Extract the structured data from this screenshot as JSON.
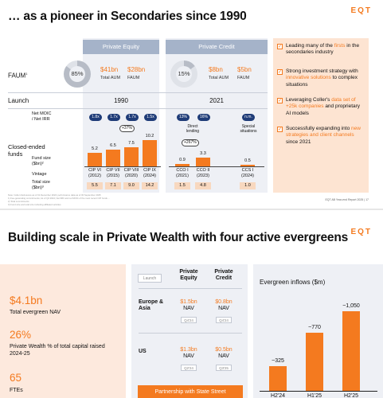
{
  "slide1": {
    "title": "… as a pioneer in Secondaries since 1990",
    "logo": "EQT",
    "headers": {
      "pe": "Private Equity",
      "pc": "Private Credit"
    },
    "rows": {
      "faum": "FAUM",
      "faum_sup": "1",
      "launch": "Launch",
      "moic": "Net MOIC\n/ Net IRR",
      "funds": "Closed-ended\nfunds",
      "fund_size": "Fund size\n($bn)²",
      "vintage": "Vintage",
      "total_size": "Total size\n($bn)³"
    },
    "pe": {
      "pct": "85%",
      "aum_val": "$41bn",
      "aum_lbl": "Total AUM",
      "faum_val": "$28bn",
      "faum_lbl": "FAUM",
      "launch": "1990"
    },
    "pc": {
      "pct": "15%",
      "aum_val": "$8bn",
      "aum_lbl": "Total AUM",
      "faum_val": "$5bn",
      "faum_lbl": "FAUM",
      "launch": "2021"
    },
    "chart_data": {
      "type": "bar",
      "categories": [
        "CIP VI\n(2012)",
        "CIP VII\n(2015)",
        "CIP VIII\n(2020)",
        "CIP IX\n(2024)",
        "CCO I\n(2021)",
        "CCO II\n(2023)",
        "CCS I\n(2024)"
      ],
      "values": [
        5.2,
        6.5,
        7.5,
        10.2,
        0.9,
        3.3,
        0.5
      ],
      "moic": [
        "1.8x",
        "1.7x",
        "1.7x",
        "1.5x",
        "13%",
        "16%",
        "n.m."
      ],
      "total_size": [
        "5.5",
        "7.1",
        "9.0",
        "14.2",
        "1.5",
        "4.8",
        "1.0"
      ],
      "growth_badges": [
        "+37%",
        "+267%"
      ],
      "sub_labels": [
        "Direct\nlending",
        "Special\nsituations"
      ]
    },
    "bullets": [
      {
        "parts": [
          "Leading many of the ",
          "firsts",
          " in the secondaries industry"
        ]
      },
      {
        "parts": [
          "Strong investment strategy with ",
          "innovative solutions",
          " to complex situations"
        ]
      },
      {
        "parts": [
          "Leveraging Coller's ",
          "data set of +25k companies",
          " and proprietary AI models"
        ]
      },
      {
        "parts": [
          "Successfully expanding into ",
          "new strategies and client channels",
          " since 2021"
        ]
      }
    ],
    "footnote1": "Note: Coller disclosures as of 31 December 2024; performance data as of 30 September 2025",
    "footnote2": "1)   Fee-generating commitments; As of Q4 2024; Net IRR and net MOIC of the most recent CIP funds …",
    "footnote3": "2)   Total commitments",
    "footnote4": "3)   Fund size and total size including affiliated vehicles",
    "page_ref": "EQT AB Year-end Report 2025   |   17"
  },
  "slide2": {
    "title": "Building scale in Private Wealth with four active evergreens",
    "logo": "EQT",
    "stats": [
      {
        "value": "$4.1bn",
        "label": "Total evergreen NAV"
      },
      {
        "value": "26%",
        "label": "Private Wealth % of total capital raised 2024-25"
      },
      {
        "value": "65",
        "label": "FTEs"
      }
    ],
    "matrix": {
      "launch": "Launch",
      "col1": "Private\nEquity",
      "col2": "Private\nCredit",
      "rows": [
        {
          "label": "Europe &\nAsia",
          "v1": "$1.5bn",
          "u1": "NAV",
          "q1": "Q4'24",
          "v2": "$0.8bn",
          "u2": "NAV",
          "q2": "Q4'24"
        },
        {
          "label": "US",
          "v1": "$1.3bn",
          "u1": "NAV",
          "q1": "Q2'24",
          "v2": "$0.5bn",
          "u2": "NAV",
          "q2": "Q3'25"
        }
      ],
      "partner": "Partnership with State Street"
    },
    "evergreen": {
      "title": "Evergreen inflows ($m)",
      "chart_data": {
        "type": "bar",
        "categories": [
          "H2'24",
          "H1'25",
          "H2'25"
        ],
        "values": [
          325,
          770,
          1050
        ],
        "labels": [
          "~325",
          "~770",
          "~1,050"
        ]
      }
    }
  }
}
